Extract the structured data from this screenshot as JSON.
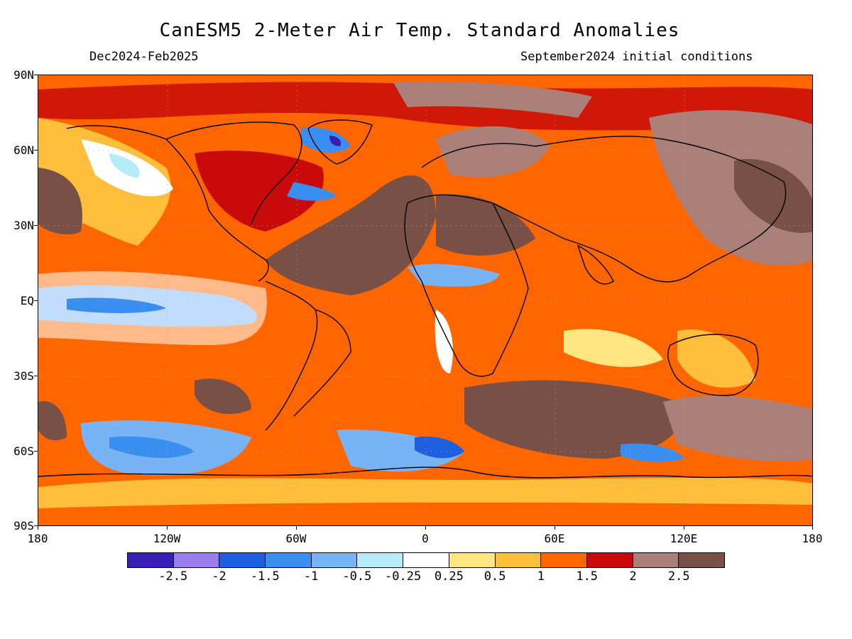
{
  "header": {
    "title": "CanESM5 2-Meter Air Temp. Standard Anomalies",
    "valid_period": "Dec2024-Feb2025",
    "init_conditions": "September2024 initial conditions"
  },
  "map": {
    "lat_labels": [
      "90N",
      "60N",
      "30N",
      "EQ",
      "30S",
      "60S",
      "90S"
    ],
    "lon_labels": [
      "180",
      "120W",
      "60W",
      "0",
      "60E",
      "120E",
      "180"
    ],
    "background_color": "#ff6600"
  },
  "colorbar": {
    "colors": [
      "#3a1fb5",
      "#9b7ff0",
      "#1e5fe0",
      "#3a8ef0",
      "#78b4f5",
      "#b4ecf8",
      "#ffffff",
      "#ffe680",
      "#ffbe3c",
      "#ff6600",
      "#c80a0a",
      "#aa8078",
      "#785046"
    ],
    "labels": [
      "-2.5",
      "-2",
      "-1.5",
      "-1",
      "-0.5",
      "-0.25",
      "0.25",
      "0.5",
      "1",
      "1.5",
      "2",
      "2.5"
    ]
  }
}
